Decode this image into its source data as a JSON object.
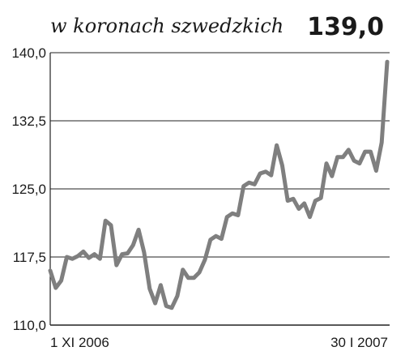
{
  "header": {
    "subtitle": "w koronach szwedzkich",
    "last_value": "139,0"
  },
  "chart_data": {
    "type": "line",
    "subtitle": "w koronach szwedzkich",
    "ylim": [
      110.0,
      140.0
    ],
    "yticks": [
      {
        "value": 110.0,
        "label": "110,0"
      },
      {
        "value": 117.5,
        "label": "117,5"
      },
      {
        "value": 125.0,
        "label": "125,0"
      },
      {
        "value": 132.5,
        "label": "132,5"
      },
      {
        "value": 140.0,
        "label": "140,0"
      }
    ],
    "x_start_label": "1 XI 2006",
    "x_end_label": "30 I 2007",
    "grid": true,
    "line_color": "#7f7f7f",
    "last_value_label": "139,0",
    "series": [
      {
        "values": [
          116.0,
          114.1,
          114.9,
          117.5,
          117.3,
          117.6,
          118.1,
          117.4,
          117.8,
          117.3,
          121.5,
          121.0,
          116.6,
          117.8,
          117.9,
          118.8,
          120.5,
          118.0,
          114.0,
          112.4,
          114.4,
          112.1,
          111.9,
          113.2,
          116.1,
          115.2,
          115.2,
          115.8,
          117.2,
          119.4,
          119.8,
          119.5,
          121.9,
          122.3,
          122.1,
          125.3,
          125.7,
          125.5,
          126.7,
          126.9,
          126.5,
          129.8,
          127.6,
          123.7,
          123.9,
          122.8,
          123.4,
          121.9,
          123.7,
          124.0,
          127.8,
          126.4,
          128.5,
          128.5,
          129.3,
          128.1,
          127.8,
          129.1,
          129.1,
          127.0,
          130.1,
          139.0
        ]
      }
    ]
  }
}
